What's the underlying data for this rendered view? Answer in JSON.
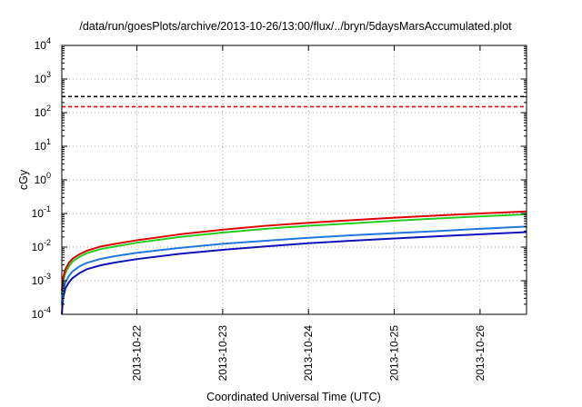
{
  "chart_data": {
    "type": "line",
    "title": "/data/run/goesPlots/archive/2013-10-26/13:00/flux/../bryn/5daysMarsAccumulated.plot",
    "xlabel": "Coordinated Universal Time (UTC)",
    "ylabel": "cGy",
    "x_scale": "time",
    "y_scale": "log",
    "xlim": [
      "2013-10-21 03:00",
      "2013-10-26 13:00"
    ],
    "ylim": [
      0.0001,
      10000
    ],
    "x_ticks": [
      "2013-10-22",
      "2013-10-23",
      "2013-10-24",
      "2013-10-25",
      "2013-10-26"
    ],
    "y_ticks": [
      {
        "base": "10",
        "exp": "-4",
        "value": 0.0001
      },
      {
        "base": "10",
        "exp": "-3",
        "value": 0.001
      },
      {
        "base": "10",
        "exp": "-2",
        "value": 0.01
      },
      {
        "base": "10",
        "exp": "-1",
        "value": 0.1
      },
      {
        "base": "10",
        "exp": "0",
        "value": 1
      },
      {
        "base": "10",
        "exp": "1",
        "value": 10
      },
      {
        "base": "10",
        "exp": "2",
        "value": 100
      },
      {
        "base": "10",
        "exp": "3",
        "value": 1000
      },
      {
        "base": "10",
        "exp": "4",
        "value": 10000
      }
    ],
    "grid": true,
    "legend": "none",
    "reference_lines": [
      {
        "y": 300,
        "color": "#000000",
        "style": "dashed"
      },
      {
        "y": 150,
        "color": "#ff0000",
        "style": "dashed"
      }
    ],
    "series": [
      {
        "color": "#dd0000",
        "x": [
          "2013-10-21 03:00",
          "2013-10-21 03:20",
          "2013-10-21 04:00",
          "2013-10-21 05:00",
          "2013-10-21 06:00",
          "2013-10-21 08:00",
          "2013-10-21 10:00",
          "2013-10-21 14:00",
          "2013-10-21 18:00",
          "2013-10-22 00:00",
          "2013-10-22 12:00",
          "2013-10-23 00:00",
          "2013-10-23 12:00",
          "2013-10-24 00:00",
          "2013-10-24 12:00",
          "2013-10-25 00:00",
          "2013-10-25 12:00",
          "2013-10-26 00:00",
          "2013-10-26 13:00"
        ],
        "y": [
          0.0005,
          0.0012,
          0.0022,
          0.0034,
          0.0045,
          0.0062,
          0.0078,
          0.0105,
          0.0125,
          0.016,
          0.024,
          0.033,
          0.043,
          0.053,
          0.063,
          0.075,
          0.087,
          0.1,
          0.115
        ]
      },
      {
        "color": "#22cc22",
        "x": [
          "2013-10-21 03:00",
          "2013-10-21 03:20",
          "2013-10-21 04:00",
          "2013-10-21 05:00",
          "2013-10-21 06:00",
          "2013-10-21 08:00",
          "2013-10-21 10:00",
          "2013-10-21 14:00",
          "2013-10-21 18:00",
          "2013-10-22 00:00",
          "2013-10-22 12:00",
          "2013-10-23 00:00",
          "2013-10-23 12:00",
          "2013-10-24 00:00",
          "2013-10-24 12:00",
          "2013-10-25 00:00",
          "2013-10-25 12:00",
          "2013-10-26 00:00",
          "2013-10-26 13:00"
        ],
        "y": [
          0.0004,
          0.0009,
          0.0017,
          0.0027,
          0.0037,
          0.0052,
          0.0066,
          0.0088,
          0.0105,
          0.0135,
          0.02,
          0.027,
          0.035,
          0.043,
          0.051,
          0.061,
          0.071,
          0.082,
          0.095
        ]
      },
      {
        "color": "#2277dd",
        "x": [
          "2013-10-21 03:00",
          "2013-10-21 03:20",
          "2013-10-21 04:00",
          "2013-10-21 05:00",
          "2013-10-21 06:00",
          "2013-10-21 08:00",
          "2013-10-21 10:00",
          "2013-10-21 14:00",
          "2013-10-21 18:00",
          "2013-10-22 00:00",
          "2013-10-22 12:00",
          "2013-10-23 00:00",
          "2013-10-23 12:00",
          "2013-10-24 00:00",
          "2013-10-24 12:00",
          "2013-10-25 00:00",
          "2013-10-25 12:00",
          "2013-10-26 00:00",
          "2013-10-26 13:00"
        ],
        "y": [
          0.0002,
          0.0005,
          0.0009,
          0.0014,
          0.0019,
          0.0027,
          0.0034,
          0.0045,
          0.0054,
          0.0068,
          0.0095,
          0.0125,
          0.0155,
          0.019,
          0.0225,
          0.026,
          0.03,
          0.035,
          0.041
        ]
      },
      {
        "color": "#1111bb",
        "x": [
          "2013-10-21 03:00",
          "2013-10-21 03:20",
          "2013-10-21 04:00",
          "2013-10-21 05:00",
          "2013-10-21 06:00",
          "2013-10-21 08:00",
          "2013-10-21 10:00",
          "2013-10-21 14:00",
          "2013-10-21 18:00",
          "2013-10-22 00:00",
          "2013-10-22 12:00",
          "2013-10-23 00:00",
          "2013-10-23 12:00",
          "2013-10-24 00:00",
          "2013-10-24 12:00",
          "2013-10-25 00:00",
          "2013-10-25 12:00",
          "2013-10-26 00:00",
          "2013-10-26 13:00"
        ],
        "y": [
          0.0001,
          0.0003,
          0.0006,
          0.0009,
          0.0012,
          0.0017,
          0.0022,
          0.0029,
          0.0035,
          0.0044,
          0.0063,
          0.0083,
          0.0105,
          0.013,
          0.0155,
          0.018,
          0.021,
          0.024,
          0.028
        ]
      }
    ]
  }
}
